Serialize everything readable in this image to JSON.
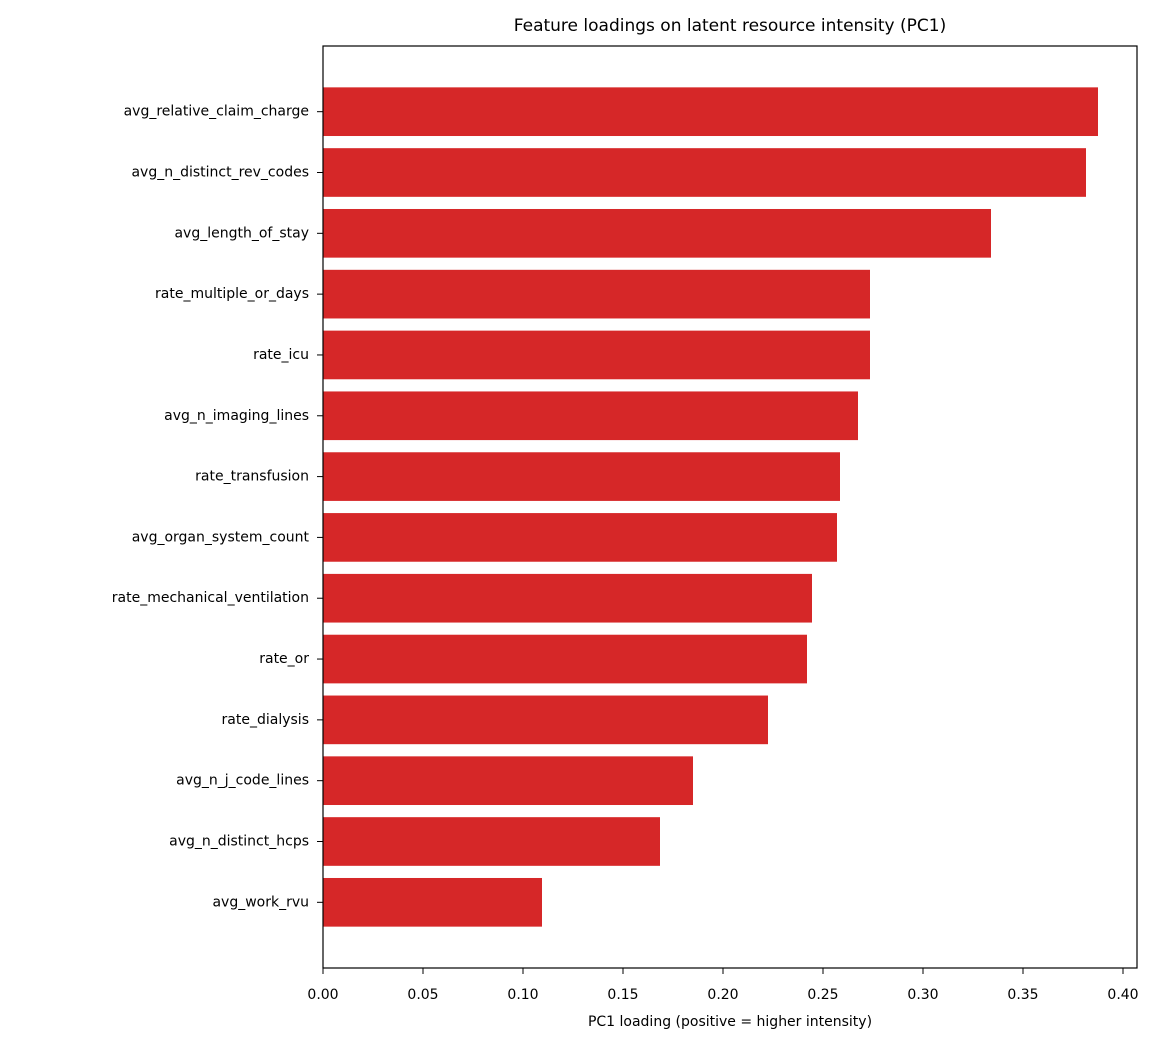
{
  "chart_data": {
    "type": "barh",
    "title": "Feature loadings on latent resource intensity (PC1)",
    "xlabel": "PC1 loading (positive = higher intensity)",
    "categories": [
      "avg_relative_claim_charge",
      "avg_n_distinct_rev_codes",
      "avg_length_of_stay",
      "rate_multiple_or_days",
      "rate_icu",
      "avg_n_imaging_lines",
      "rate_transfusion",
      "avg_organ_system_count",
      "rate_mechanical_ventilation",
      "rate_or",
      "rate_dialysis",
      "avg_n_j_code_lines",
      "avg_n_distinct_hcps",
      "avg_work_rvu"
    ],
    "values": [
      0.3875,
      0.3815,
      0.334,
      0.2735,
      0.2735,
      0.2675,
      0.2585,
      0.257,
      0.2445,
      0.242,
      0.2225,
      0.185,
      0.1685,
      0.1095
    ],
    "color": "#d62728",
    "xlim": [
      0,
      0.407
    ],
    "xticks": [
      {
        "value": 0,
        "label": "0.00"
      },
      {
        "value": 0.05,
        "label": "0.05"
      },
      {
        "value": 0.1,
        "label": "0.10"
      },
      {
        "value": 0.15,
        "label": "0.15"
      },
      {
        "value": 0.2,
        "label": "0.20"
      },
      {
        "value": 0.25,
        "label": "0.25"
      },
      {
        "value": 0.3,
        "label": "0.30"
      },
      {
        "value": 0.35,
        "label": "0.35"
      },
      {
        "value": 0.4,
        "label": "0.40"
      }
    ],
    "grid": false
  }
}
